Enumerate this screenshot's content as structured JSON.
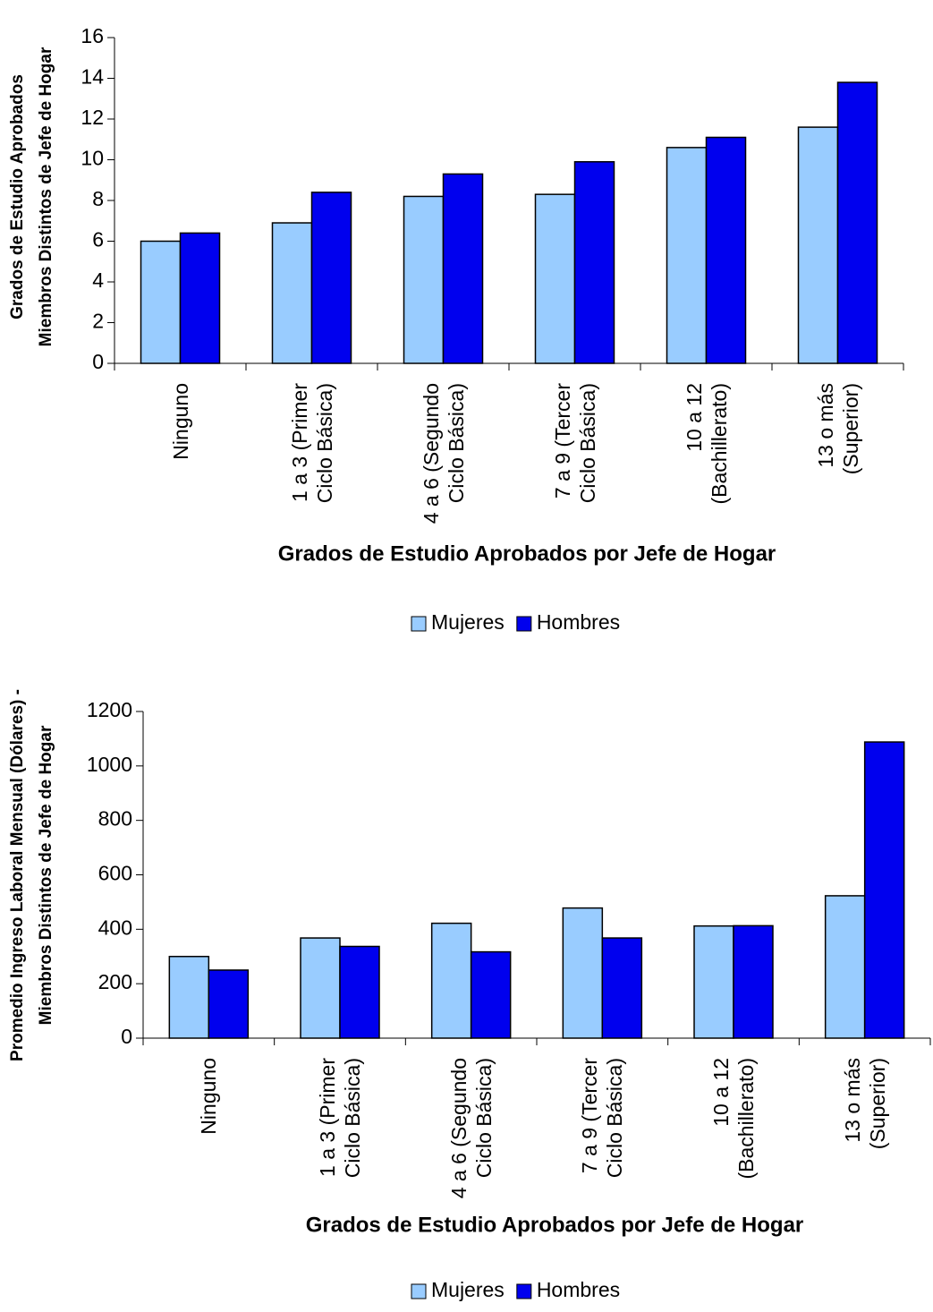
{
  "chart_data": [
    {
      "type": "bar",
      "y_label": [
        "Grados de Estudio Aprobados",
        "Miembros Distintos de Jefe de Hogar"
      ],
      "x_label": "Grados de Estudio Aprobados por Jefe de Hogar",
      "categories": [
        "Ninguno",
        "1 a 3 (Primer Ciclo Básica)",
        "4 a 6 (Segundo Ciclo Básica)",
        "7 a 9 (Tercer Ciclo Básica)",
        "10 a 12 (Bachillerato)",
        "13 o más (Superior)"
      ],
      "series": [
        {
          "name": "Mujeres",
          "color": "#99ccff",
          "values": [
            6.0,
            6.9,
            8.2,
            8.3,
            10.6,
            11.6
          ]
        },
        {
          "name": "Hombres",
          "color": "#0000ee",
          "values": [
            6.4,
            8.4,
            9.3,
            9.9,
            11.1,
            13.8
          ]
        }
      ],
      "ylim": [
        0,
        16
      ],
      "yticks": [
        0,
        2,
        4,
        6,
        8,
        10,
        12,
        14,
        16
      ],
      "legend": "bottom"
    },
    {
      "type": "bar",
      "y_label": [
        "Promedio Ingreso Laboral Mensual (Dólares) -",
        "Miembros Distintos de Jefe de Hogar"
      ],
      "x_label": "Grados de Estudio Aprobados por Jefe de Hogar",
      "categories": [
        "Ninguno",
        "1 a 3 (Primer Ciclo Básica)",
        "4 a 6 (Segundo Ciclo Básica)",
        "7 a 9 (Tercer Ciclo Básica)",
        "10 a 12 (Bachillerato)",
        "13 o más (Superior)"
      ],
      "series": [
        {
          "name": "Mujeres",
          "color": "#99ccff",
          "values": [
            300,
            368,
            422,
            478,
            412,
            523
          ]
        },
        {
          "name": "Hombres",
          "color": "#0000ee",
          "values": [
            250,
            337,
            317,
            368,
            413,
            1088
          ]
        }
      ],
      "ylim": [
        0,
        1200
      ],
      "yticks": [
        0,
        200,
        400,
        600,
        800,
        1000,
        1200
      ],
      "legend": "bottom"
    }
  ]
}
